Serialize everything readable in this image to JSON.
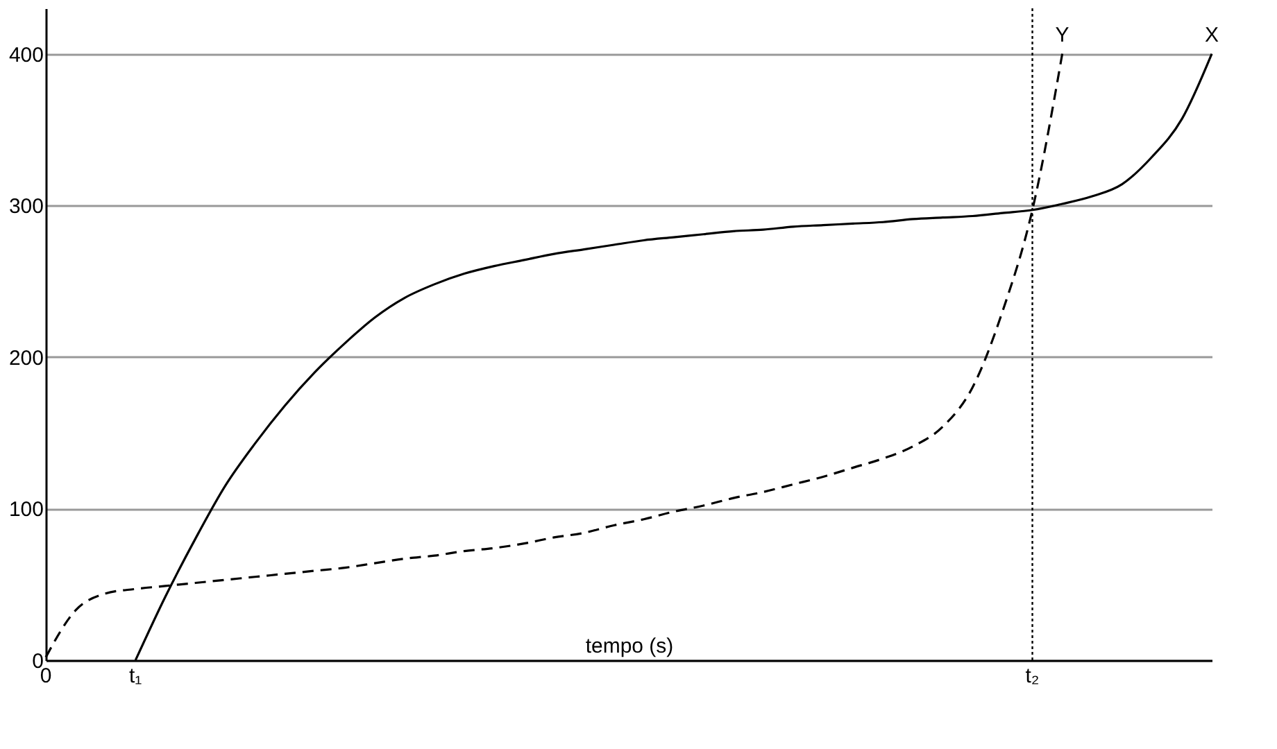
{
  "chart_data": {
    "type": "line",
    "xlabel": "tempo (s)",
    "categories": [
      "0",
      null,
      null,
      "t₁",
      null,
      null,
      null,
      null,
      null,
      null,
      null,
      null,
      null,
      null,
      null,
      null,
      null,
      null,
      null,
      null,
      null,
      null,
      null,
      null,
      null,
      null,
      null,
      null,
      null,
      null,
      null,
      null,
      null,
      "t₂",
      null,
      null,
      null,
      null,
      null,
      null
    ],
    "ylim": [
      0,
      430
    ],
    "yticks": [
      0,
      100,
      200,
      300,
      400
    ],
    "grid": "y",
    "series": [
      {
        "name": "X",
        "color": "#000000",
        "line_style": "solid",
        "values": [
          null,
          null,
          null,
          0,
          42,
          80,
          115,
          143,
          168,
          190,
          209,
          226,
          239,
          248,
          255,
          260,
          264,
          268,
          271,
          274,
          277,
          279,
          281,
          283,
          284,
          286,
          287,
          288,
          289,
          291,
          292,
          293,
          295,
          297,
          301,
          306,
          314,
          332,
          357,
          400
        ]
      },
      {
        "name": "Y",
        "color": "#000000",
        "line_style": "dashed",
        "values": [
          2,
          33,
          44,
          47,
          49,
          51,
          53,
          55,
          57,
          59,
          61,
          64,
          67,
          69,
          72,
          74,
          77,
          81,
          84,
          89,
          93,
          98,
          102,
          107,
          111,
          116,
          121,
          127,
          133,
          141,
          154,
          180,
          230,
          297,
          400,
          null,
          null,
          null,
          null,
          null
        ]
      }
    ],
    "ref_lines": [
      {
        "axis": "x",
        "value": "t₂",
        "line_style": "dotted"
      }
    ]
  }
}
